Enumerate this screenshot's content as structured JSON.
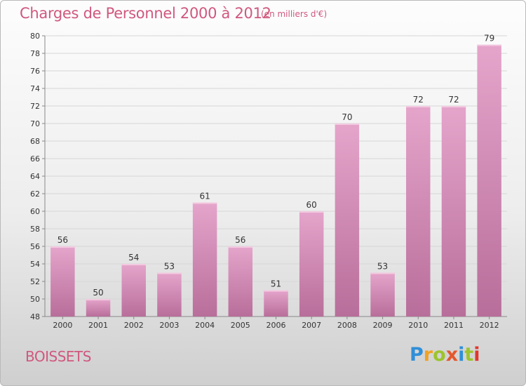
{
  "title": "Charges de Personnel 2000 à 2012",
  "subtitle": "(en milliers d'€)",
  "town": "BOISSETS",
  "logo": {
    "letters": [
      "P",
      "r",
      "o",
      "x",
      "i",
      "t",
      "i"
    ]
  },
  "colors": {
    "bar_top": "#e5a5cb",
    "bar_bottom": "#b86e9a",
    "accent_text": "#d0587e"
  },
  "chart_data": {
    "type": "bar",
    "title": "Charges de Personnel 2000 à 2012",
    "subtitle": "(en milliers d'€)",
    "categories": [
      "2000",
      "2001",
      "2002",
      "2003",
      "2004",
      "2005",
      "2006",
      "2007",
      "2008",
      "2009",
      "2010",
      "2011",
      "2012"
    ],
    "values": [
      56,
      50,
      54,
      53,
      61,
      56,
      51,
      60,
      70,
      53,
      72,
      72,
      79
    ],
    "ylim": [
      48,
      80
    ],
    "yticks": [
      48,
      50,
      52,
      54,
      56,
      58,
      60,
      62,
      64,
      66,
      68,
      70,
      72,
      74,
      76,
      78,
      80
    ],
    "grid": true,
    "xlabel": "",
    "ylabel": ""
  }
}
